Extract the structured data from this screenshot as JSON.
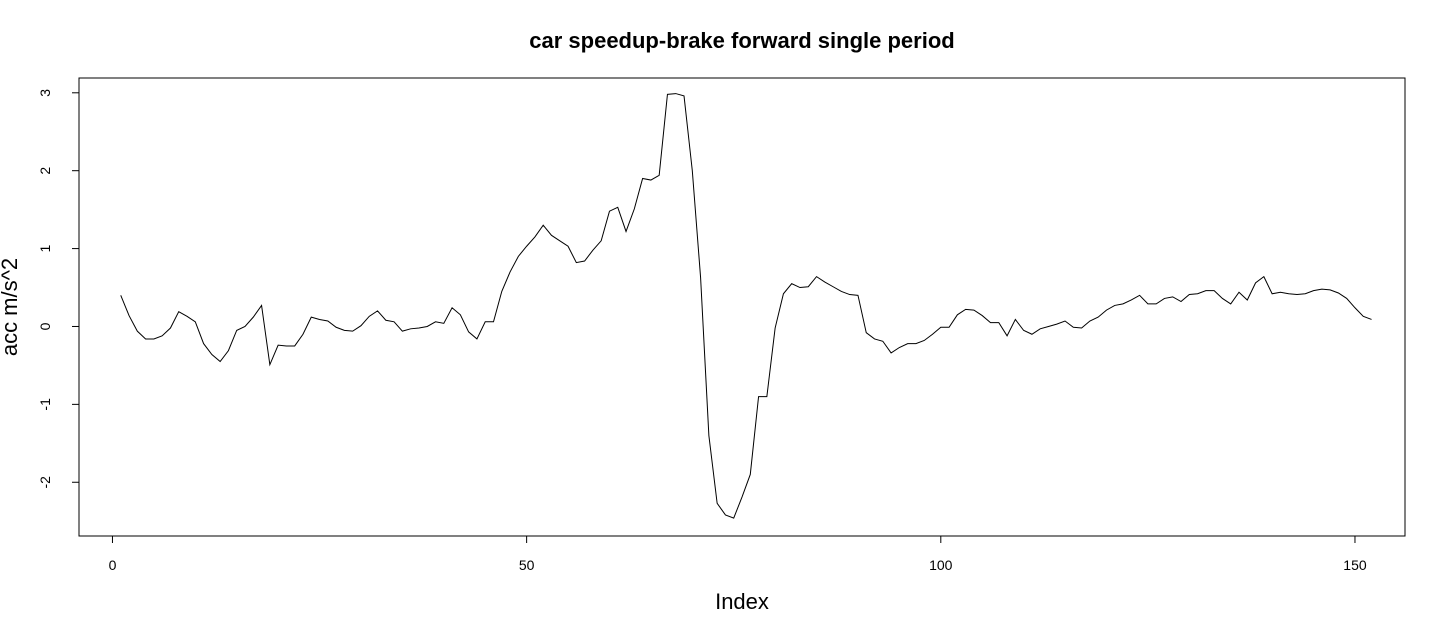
{
  "chart_data": {
    "type": "line",
    "title": "car speedup-brake forward single period",
    "xlabel": "Index",
    "ylabel": "acc m/s^2",
    "xlim": [
      -4.04,
      156.04
    ],
    "ylim": [
      -2.69,
      3.19
    ],
    "x_ticks": [
      0,
      50,
      100,
      150
    ],
    "y_ticks": [
      -2,
      -1,
      0,
      1,
      2,
      3
    ],
    "grid": false,
    "legend": "none",
    "series": [
      {
        "color": "#000000",
        "values": [
          0.4,
          0.14,
          -0.06,
          -0.16,
          -0.16,
          -0.12,
          -0.02,
          0.19,
          0.13,
          0.06,
          -0.22,
          -0.36,
          -0.45,
          -0.31,
          -0.05,
          0.0,
          0.12,
          0.27,
          -0.49,
          -0.24,
          -0.25,
          -0.25,
          -0.1,
          0.12,
          0.09,
          0.07,
          -0.01,
          -0.05,
          -0.06,
          0.01,
          0.13,
          0.2,
          0.08,
          0.06,
          -0.06,
          -0.03,
          -0.02,
          0.0,
          0.06,
          0.04,
          0.24,
          0.15,
          -0.07,
          -0.16,
          0.06,
          0.06,
          0.45,
          0.7,
          0.9,
          1.03,
          1.15,
          1.3,
          1.17,
          1.1,
          1.03,
          0.82,
          0.84,
          0.98,
          1.1,
          1.48,
          1.53,
          1.22,
          1.51,
          1.9,
          1.88,
          1.94,
          2.98,
          2.99,
          2.96,
          2.0,
          0.63,
          -1.4,
          -2.27,
          -2.42,
          -2.46,
          -2.19,
          -1.9,
          -0.9,
          -0.9,
          -0.02,
          0.42,
          0.55,
          0.5,
          0.51,
          0.64,
          0.57,
          0.51,
          0.45,
          0.41,
          0.4,
          -0.08,
          -0.16,
          -0.19,
          -0.34,
          -0.27,
          -0.22,
          -0.22,
          -0.18,
          -0.1,
          -0.01,
          -0.01,
          0.15,
          0.22,
          0.21,
          0.14,
          0.05,
          0.05,
          -0.12,
          0.09,
          -0.05,
          -0.1,
          -0.03,
          0.0,
          0.03,
          0.07,
          -0.01,
          -0.02,
          0.07,
          0.12,
          0.21,
          0.27,
          0.29,
          0.34,
          0.4,
          0.29,
          0.29,
          0.36,
          0.38,
          0.32,
          0.41,
          0.42,
          0.46,
          0.46,
          0.36,
          0.29,
          0.44,
          0.34,
          0.56,
          0.64,
          0.42,
          0.44,
          0.42,
          0.41,
          0.42,
          0.46,
          0.48,
          0.47,
          0.43,
          0.36,
          0.24,
          0.13,
          0.09
        ]
      }
    ]
  }
}
